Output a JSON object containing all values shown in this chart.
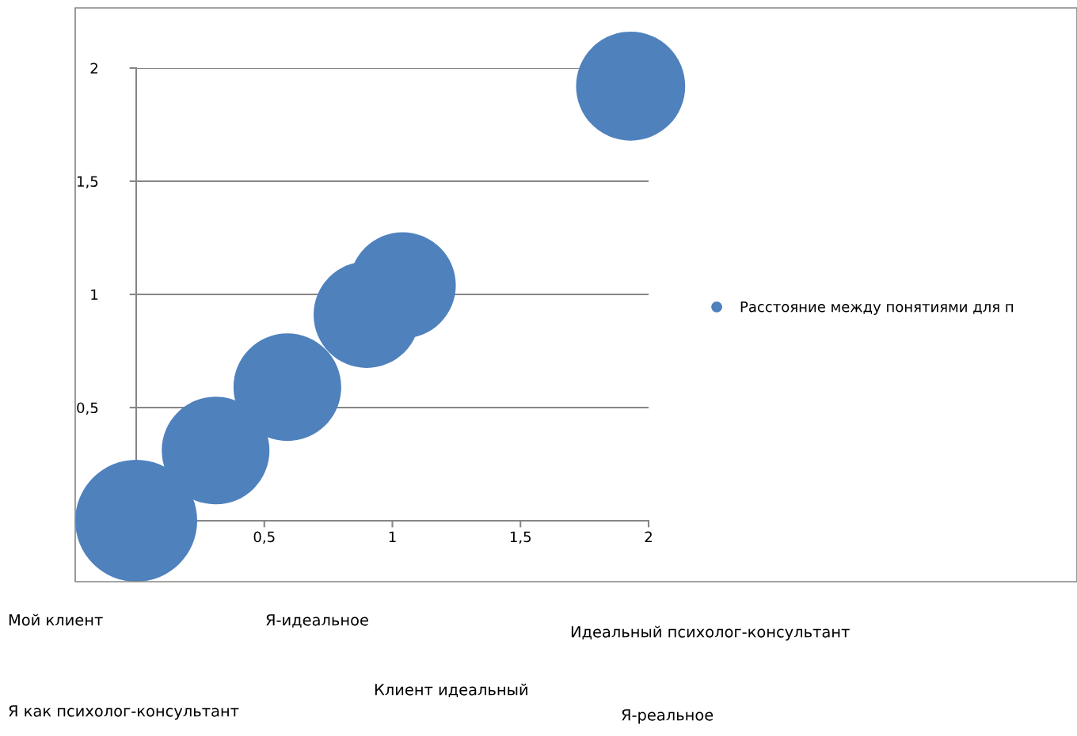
{
  "chart_data": {
    "type": "bubble",
    "x": [
      0,
      0.31,
      0.59,
      0.9,
      1.04,
      1.93
    ],
    "series": [
      {
        "name": "Расстояние между понятиями для п",
        "color": "#4f81bd",
        "values": [
          0,
          0.31,
          0.59,
          0.91,
          1.04,
          1.92
        ],
        "sizes": [
          1,
          0.78,
          0.78,
          0.76,
          0.76,
          0.8
        ]
      }
    ],
    "xlim": [
      0,
      2
    ],
    "xticks": [
      {
        "value": 0,
        "label": null
      },
      {
        "value": 0.5,
        "label": "0,5"
      },
      {
        "value": 1,
        "label": "1"
      },
      {
        "value": 1.5,
        "label": "1,5"
      },
      {
        "value": 2,
        "label": "2"
      }
    ],
    "ylim": [
      0,
      2
    ],
    "yticks": [
      {
        "value": 0,
        "label": null
      },
      {
        "value": 0.5,
        "label": "0,5"
      },
      {
        "value": 1,
        "label": "1"
      },
      {
        "value": 1.5,
        "label": "1,5"
      },
      {
        "value": 2,
        "label": "2"
      }
    ],
    "grid": "y",
    "legend": "right",
    "marker": "circle",
    "annotations": [
      "Мой клиент",
      "Я-идеальное",
      "Идеальный психолог-консультант",
      "Клиент идеальный",
      "Я как психолог-консультант",
      "Я-реальное"
    ]
  }
}
